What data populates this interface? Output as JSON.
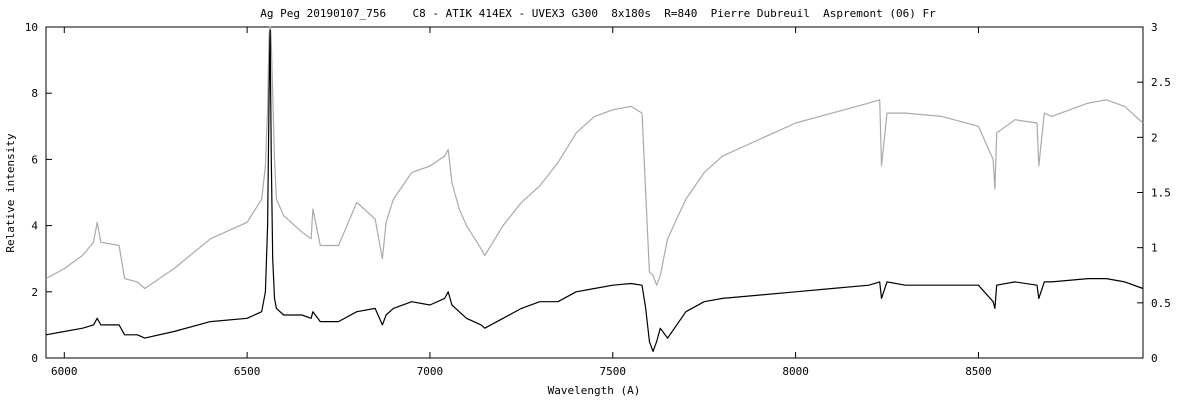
{
  "chart_data": {
    "type": "line",
    "title": "Ag Peg 20190107_756    C8 - ATIK 414EX - UVEX3 G300  8x180s  R=840  Pierre Dubreuil  Aspremont (06) Fr",
    "xlabel": "Wavelength (A)",
    "ylabel": "Relative intensity",
    "xlim": [
      5950,
      8950
    ],
    "ylim": [
      0,
      10
    ],
    "y2lim": [
      0,
      3
    ],
    "grid": false,
    "x_ticks": [
      "6000",
      "6500",
      "7000",
      "7500",
      "8000",
      "8500"
    ],
    "y_ticks": [
      "0",
      "2",
      "4",
      "6",
      "8",
      "10"
    ],
    "y2_ticks": [
      "0",
      "0.5",
      "1",
      "1.5",
      "2",
      "2.5",
      "3"
    ],
    "series": [
      {
        "axis": "left",
        "color": "#000000",
        "x": [
          5950,
          6000,
          6050,
          6080,
          6090,
          6100,
          6150,
          6165,
          6200,
          6220,
          6300,
          6400,
          6500,
          6540,
          6550,
          6556,
          6560,
          6562,
          6563,
          6564,
          6566,
          6570,
          6575,
          6580,
          6600,
          6650,
          6675,
          6680,
          6700,
          6750,
          6800,
          6850,
          6870,
          6880,
          6900,
          6950,
          7000,
          7040,
          7050,
          7060,
          7080,
          7100,
          7140,
          7150,
          7200,
          7250,
          7300,
          7350,
          7400,
          7450,
          7500,
          7550,
          7580,
          7590,
          7600,
          7610,
          7620,
          7630,
          7650,
          7700,
          7750,
          7800,
          7900,
          8000,
          8100,
          8200,
          8230,
          8235,
          8250,
          8300,
          8400,
          8500,
          8540,
          8545,
          8550,
          8600,
          8660,
          8665,
          8680,
          8700,
          8800,
          8850,
          8900,
          8950
        ],
        "values": [
          0.7,
          0.8,
          0.9,
          1.0,
          1.2,
          1.0,
          1.0,
          0.7,
          0.7,
          0.6,
          0.8,
          1.1,
          1.2,
          1.4,
          2.0,
          4.0,
          8.0,
          9.5,
          9.9,
          8.5,
          6.0,
          3.0,
          1.8,
          1.5,
          1.3,
          1.3,
          1.2,
          1.4,
          1.1,
          1.1,
          1.4,
          1.5,
          1.0,
          1.3,
          1.5,
          1.7,
          1.6,
          1.8,
          2.0,
          1.6,
          1.4,
          1.2,
          1.0,
          0.9,
          1.2,
          1.5,
          1.7,
          1.7,
          2.0,
          2.1,
          2.2,
          2.25,
          2.2,
          1.5,
          0.5,
          0.2,
          0.5,
          0.9,
          0.6,
          1.4,
          1.7,
          1.8,
          1.9,
          2.0,
          2.1,
          2.2,
          2.3,
          1.8,
          2.3,
          2.2,
          2.2,
          2.2,
          1.7,
          1.5,
          2.2,
          2.3,
          2.2,
          1.8,
          2.3,
          2.3,
          2.4,
          2.4,
          2.3,
          2.1
        ]
      },
      {
        "axis": "left",
        "color": "#aaaaaa",
        "x": [
          5950,
          6000,
          6050,
          6080,
          6090,
          6100,
          6150,
          6165,
          6200,
          6220,
          6300,
          6400,
          6500,
          6540,
          6550,
          6556,
          6560,
          6562,
          6563,
          6564,
          6566,
          6570,
          6575,
          6580,
          6600,
          6650,
          6675,
          6680,
          6700,
          6750,
          6800,
          6850,
          6870,
          6880,
          6900,
          6950,
          7000,
          7040,
          7050,
          7060,
          7080,
          7100,
          7140,
          7150,
          7200,
          7250,
          7300,
          7350,
          7400,
          7450,
          7500,
          7550,
          7580,
          7590,
          7600,
          7610,
          7620,
          7630,
          7650,
          7700,
          7750,
          7800,
          7900,
          8000,
          8100,
          8200,
          8230,
          8235,
          8250,
          8300,
          8400,
          8500,
          8540,
          8545,
          8550,
          8600,
          8660,
          8665,
          8680,
          8700,
          8800,
          8850,
          8900,
          8950
        ],
        "values": [
          2.4,
          2.7,
          3.1,
          3.5,
          4.1,
          3.5,
          3.4,
          2.4,
          2.3,
          2.1,
          2.7,
          3.6,
          4.1,
          4.8,
          5.8,
          7.5,
          9.8,
          10.0,
          10.0,
          10.0,
          9.5,
          8.0,
          6.0,
          4.8,
          4.3,
          3.8,
          3.6,
          4.5,
          3.4,
          3.4,
          4.7,
          4.2,
          3.0,
          4.1,
          4.8,
          5.6,
          5.8,
          6.1,
          6.3,
          5.3,
          4.5,
          4.0,
          3.3,
          3.1,
          4.0,
          4.7,
          5.2,
          5.9,
          6.8,
          7.3,
          7.5,
          7.6,
          7.4,
          5.0,
          2.6,
          2.5,
          2.2,
          2.5,
          3.6,
          4.8,
          5.6,
          6.1,
          6.6,
          7.1,
          7.4,
          7.7,
          7.8,
          5.8,
          7.4,
          7.4,
          7.3,
          7.0,
          6.0,
          5.1,
          6.8,
          7.2,
          7.1,
          5.8,
          7.4,
          7.3,
          7.7,
          7.8,
          7.6,
          7.1
        ]
      }
    ]
  }
}
